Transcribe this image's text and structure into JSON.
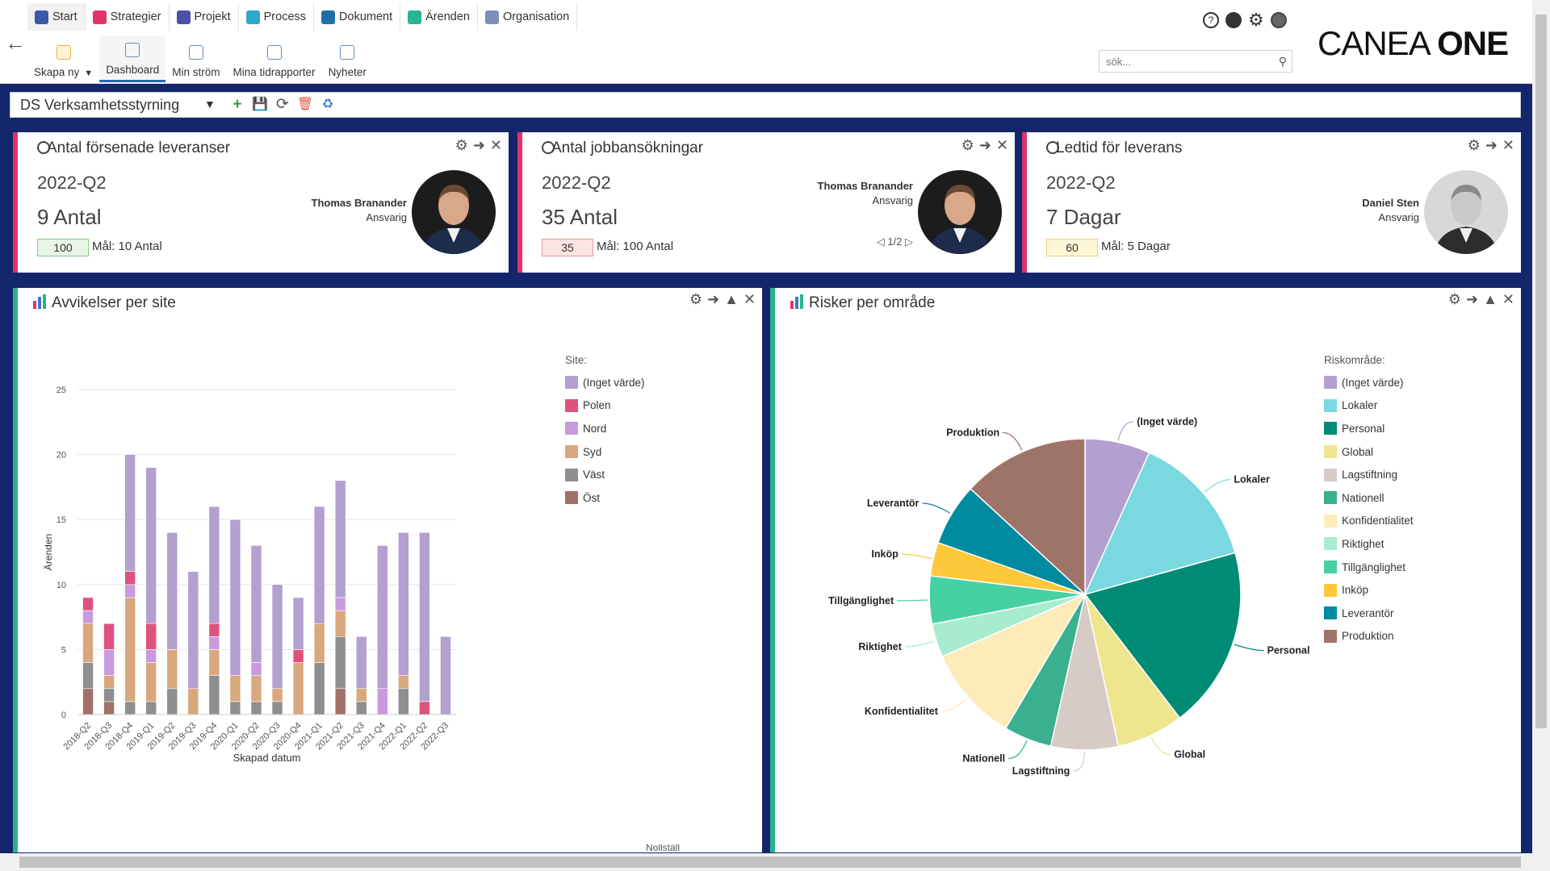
{
  "app": {
    "logo_thin": "CANEA ",
    "logo_bold": "ONE",
    "tabs": [
      {
        "label": "Start",
        "icon": "home-icon",
        "color": "#3a5aa8"
      },
      {
        "label": "Strategier",
        "icon": "strategy-icon",
        "color": "#e0336a"
      },
      {
        "label": "Projekt",
        "icon": "project-icon",
        "color": "#4a4fa8"
      },
      {
        "label": "Process",
        "icon": "process-icon",
        "color": "#2aa9c8"
      },
      {
        "label": "Dokument",
        "icon": "document-icon",
        "color": "#1f6fa8"
      },
      {
        "label": "Ärenden",
        "icon": "cases-icon",
        "color": "#28b48f"
      },
      {
        "label": "Organisation",
        "icon": "organisation-icon",
        "color": "#7d8fb8"
      }
    ],
    "subnav": [
      {
        "label": "Skapa ny",
        "icon": "new-document-icon"
      },
      {
        "label": "Dashboard",
        "icon": "dashboard-icon"
      },
      {
        "label": "Min ström",
        "icon": "stream-icon"
      },
      {
        "label": "Mina tidrapporter",
        "icon": "timereport-icon"
      },
      {
        "label": "Nyheter",
        "icon": "news-icon"
      }
    ],
    "search_placeholder": "sök..."
  },
  "toolbar": {
    "dashboard_name": "DS Verksamhetsstyrning"
  },
  "kpis": [
    {
      "title": "Antal försenade leveranser",
      "period": "2022-Q2",
      "value": "9 Antal",
      "badge": "100",
      "goal": "Mål: 10 Antal",
      "person": "Thomas Branander",
      "role": "Ansvarig",
      "pager": "",
      "badge_color": "#e6f5e6",
      "badge_border": "#8bc88b"
    },
    {
      "title": "Antal jobbansökningar",
      "period": "2022-Q2",
      "value": "35 Antal",
      "badge": "35",
      "goal": "Mål: 100 Antal",
      "person": "Thomas Branander",
      "role": "Ansvarig",
      "pager": "1/2",
      "badge_color": "#fde4e4",
      "badge_border": "#e89a9a"
    },
    {
      "title": "Ledtid för leverans",
      "period": "2022-Q2",
      "value": "7 Dagar",
      "badge": "60",
      "goal": "Mål: 5 Dagar",
      "person": "Daniel Sten",
      "role": "Ansvarig",
      "pager": "",
      "badge_color": "#fff6d6",
      "badge_border": "#e6cf7a"
    }
  ],
  "panels": {
    "left_title": "Avvikelser per site",
    "right_title": "Risker per område",
    "left_footer_fragment": "Nollställ"
  },
  "chart_data": [
    {
      "type": "bar",
      "stacked": true,
      "title": "Avvikelser per site",
      "xlabel": "Skapad datum",
      "ylabel": "Ärenden",
      "ylim": [
        0,
        25
      ],
      "yticks": [
        0,
        5,
        10,
        15,
        20,
        25
      ],
      "legend_title": "Site:",
      "legend_position": "top-right",
      "grid": true,
      "categories": [
        "2018-Q2",
        "2018-Q3",
        "2018-Q4",
        "2019-Q1",
        "2019-Q2",
        "2019-Q3",
        "2019-Q4",
        "2020-Q1",
        "2020-Q2",
        "2020-Q3",
        "2020-Q4",
        "2021-Q1",
        "2021-Q2",
        "2021-Q3",
        "2021-Q4",
        "2022-Q1",
        "2022-Q2",
        "2022-Q3"
      ],
      "series": [
        {
          "name": "Öst",
          "color": "#a0716a",
          "values": [
            2,
            1,
            0,
            0,
            0,
            0,
            0,
            0,
            0,
            0,
            0,
            0,
            2,
            0,
            0,
            0,
            0,
            0
          ]
        },
        {
          "name": "Väst",
          "color": "#8f8f8f",
          "values": [
            2,
            1,
            1,
            1,
            2,
            0,
            3,
            1,
            1,
            1,
            0,
            4,
            4,
            1,
            0,
            2,
            0,
            0
          ]
        },
        {
          "name": "Syd",
          "color": "#d9a77e",
          "values": [
            3,
            1,
            8,
            3,
            3,
            2,
            2,
            2,
            2,
            1,
            4,
            3,
            2,
            1,
            0,
            1,
            0,
            0
          ]
        },
        {
          "name": "Nord",
          "color": "#c99ade",
          "values": [
            1,
            2,
            1,
            1,
            0,
            0,
            1,
            0,
            1,
            0,
            0,
            0,
            1,
            0,
            2,
            0,
            0,
            0
          ]
        },
        {
          "name": "Polen",
          "color": "#e0527d",
          "values": [
            1,
            2,
            1,
            2,
            0,
            0,
            1,
            0,
            0,
            0,
            1,
            0,
            0,
            0,
            0,
            0,
            1,
            0
          ]
        },
        {
          "name": "(Inget värde)",
          "color": "#b39fd0",
          "values": [
            0,
            0,
            9,
            12,
            9,
            9,
            9,
            12,
            9,
            8,
            4,
            9,
            9,
            4,
            11,
            11,
            13,
            6
          ]
        }
      ]
    },
    {
      "type": "pie",
      "title": "Risker per område",
      "legend_title": "Riskområde:",
      "legend_position": "right",
      "slices": [
        {
          "label": "(Inget värde)",
          "value": 6.8,
          "color": "#b39fd0"
        },
        {
          "label": "Lokaler",
          "value": 14.0,
          "color": "#7ad8e0"
        },
        {
          "label": "Personal",
          "value": 19.0,
          "color": "#008c74"
        },
        {
          "label": "Global",
          "value": 7.0,
          "color": "#ede68f"
        },
        {
          "label": "Lagstiftning",
          "value": 7.0,
          "color": "#d6cbc6"
        },
        {
          "label": "Nationell",
          "value": 5.0,
          "color": "#3ab08f"
        },
        {
          "label": "Konfidentialitet",
          "value": 10.0,
          "color": "#fdebb9"
        },
        {
          "label": "Riktighet",
          "value": 3.5,
          "color": "#a8ecd0"
        },
        {
          "label": "Tillgänglighet",
          "value": 5.0,
          "color": "#47d0a4"
        },
        {
          "label": "Inköp",
          "value": 3.5,
          "color": "#fdc93a"
        },
        {
          "label": "Leverantör",
          "value": 6.5,
          "color": "#008aa0"
        },
        {
          "label": "Produktion",
          "value": 13.2,
          "color": "#9f7468"
        }
      ]
    }
  ]
}
